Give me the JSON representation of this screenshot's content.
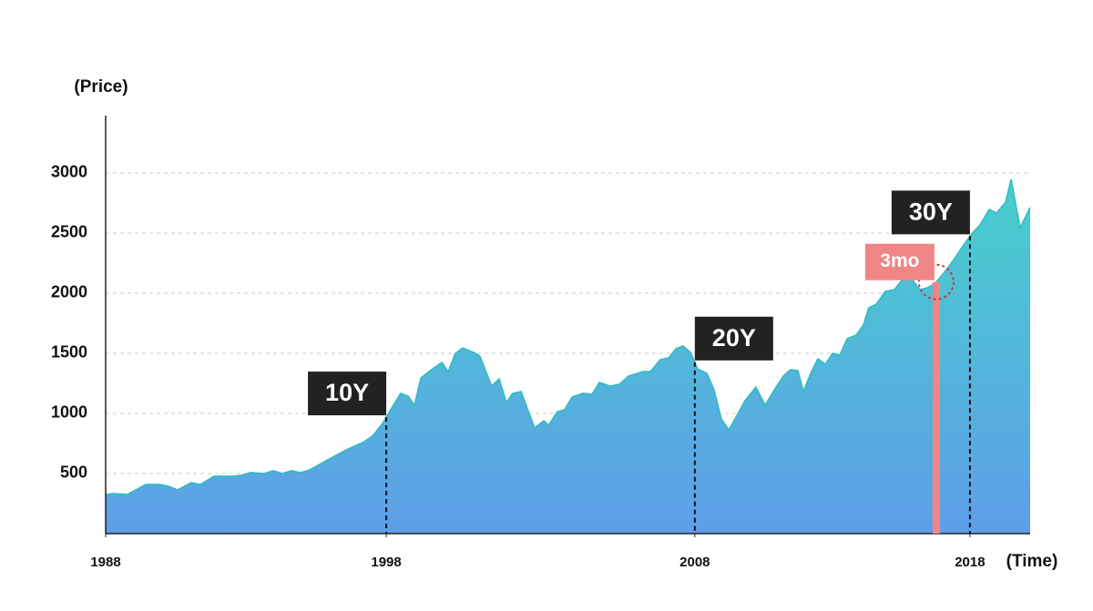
{
  "chart_data": {
    "type": "area",
    "y_label": "(Price)",
    "x_label": "(Time)",
    "x": [
      1988.0,
      1988.28,
      1988.76,
      1989.39,
      1989.87,
      1990.18,
      1990.5,
      1990.97,
      1991.29,
      1991.76,
      1992.39,
      1992.71,
      1993.03,
      1993.5,
      1993.82,
      1994.13,
      1994.45,
      1994.77,
      1995.08,
      1995.71,
      1996.35,
      1996.98,
      1997.29,
      1997.61,
      1997.93,
      1998.24,
      1998.5,
      1998.72,
      1998.94,
      1999.35,
      1999.67,
      1999.89,
      2000.14,
      2000.39,
      2000.77,
      2000.99,
      2001.4,
      2001.66,
      2001.91,
      2002.13,
      2002.42,
      2002.89,
      2003.21,
      2003.37,
      2003.68,
      2003.93,
      2004.19,
      2004.57,
      2004.88,
      2005.14,
      2005.51,
      2005.83,
      2006.15,
      2006.46,
      2006.65,
      2006.91,
      2007.25,
      2007.54,
      2007.79,
      2008.04,
      2008.3,
      2008.55,
      2008.87,
      2009.12,
      2009.37,
      2009.63,
      2009.88,
      2010.19,
      2010.57,
      2010.89,
      2011.21,
      2011.52,
      2011.77,
      2012.03,
      2012.22,
      2012.47,
      2012.72,
      2012.98,
      2013.23,
      2013.48,
      2013.74,
      2014.05,
      2014.3,
      2014.49,
      2014.75,
      2015.06,
      2015.38,
      2015.63,
      2015.95,
      2016.26,
      2016.52,
      2016.77,
      2017.09,
      2017.4,
      2017.72,
      2018.03,
      2018.35,
      2018.67,
      2018.92,
      2019.24,
      2019.43,
      2019.74,
      2020.09
    ],
    "values": [
      326,
      333,
      326,
      409,
      409,
      394,
      364,
      424,
      409,
      477,
      477,
      485,
      508,
      500,
      523,
      500,
      523,
      508,
      530,
      614,
      697,
      765,
      818,
      917,
      1045,
      1167,
      1144,
      1068,
      1295,
      1371,
      1424,
      1348,
      1500,
      1545,
      1508,
      1477,
      1227,
      1288,
      1091,
      1167,
      1182,
      879,
      939,
      902,
      1015,
      1030,
      1136,
      1167,
      1159,
      1258,
      1227,
      1242,
      1311,
      1333,
      1348,
      1348,
      1447,
      1462,
      1538,
      1561,
      1508,
      1371,
      1333,
      1197,
      955,
      864,
      970,
      1106,
      1220,
      1068,
      1197,
      1311,
      1364,
      1356,
      1182,
      1333,
      1455,
      1409,
      1500,
      1485,
      1621,
      1652,
      1735,
      1879,
      1909,
      2015,
      2030,
      2106,
      2129,
      2030,
      2045,
      2076,
      2167,
      2265,
      2379,
      2485,
      2568,
      2697,
      2667,
      2758,
      2947,
      2545,
      2712
    ],
    "color_top": "#47cfcc",
    "color_bottom": "#5e9ee9",
    "line_color": "#2bbdbd",
    "xlim": [
      1988,
      2020.09
    ],
    "ylim": [
      0,
      3477
    ],
    "xticks": [
      1988,
      {
        "value": 1997.74,
        "label": "1998"
      },
      {
        "value": 2008.45,
        "label": "2008"
      },
      2018
    ],
    "yticks": [
      500,
      1000,
      1500,
      2000,
      2500,
      3000
    ],
    "grid": true,
    "markers": [
      {
        "label": "10Y",
        "x": 1997.74
      },
      {
        "label": "20Y",
        "x": 2008.45
      },
      {
        "label": "30Y",
        "x": 2018.0
      }
    ],
    "highlight": {
      "label": "3mo",
      "x": 2016.83,
      "color": "#f08585"
    }
  }
}
